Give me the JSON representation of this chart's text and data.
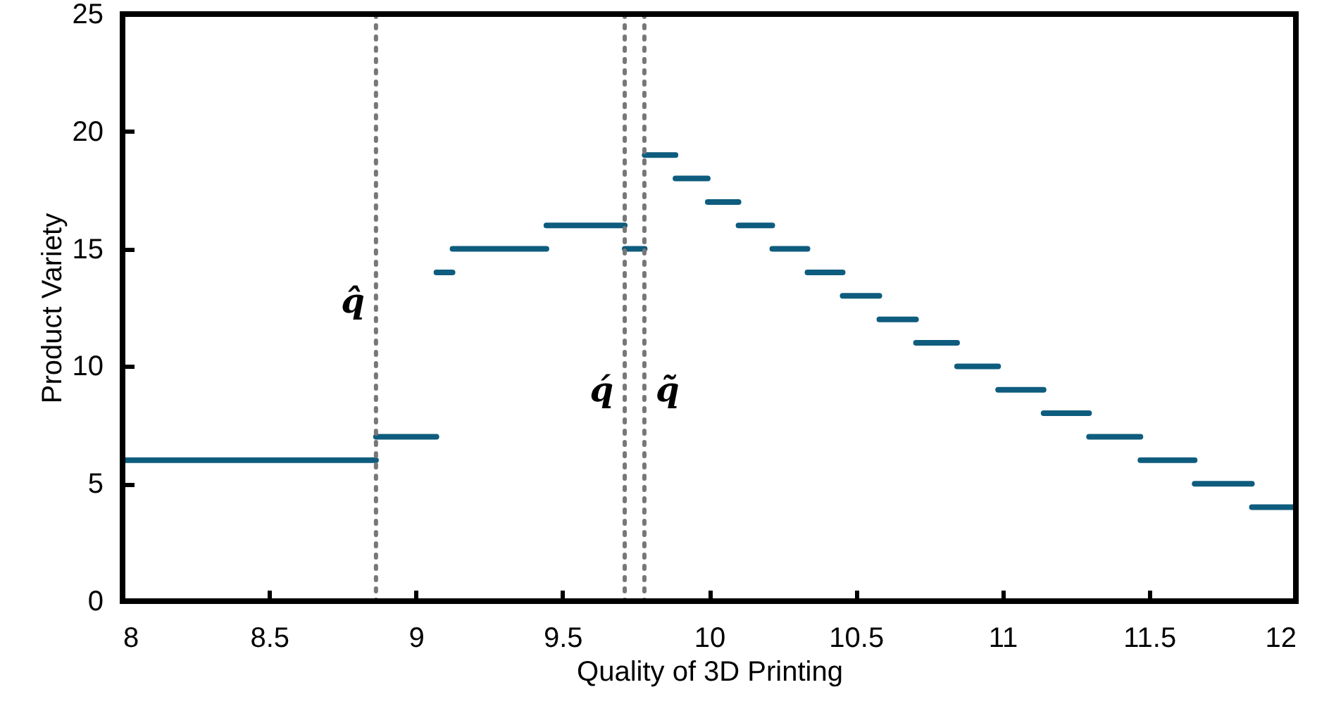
{
  "chart_data": {
    "type": "line",
    "xlabel": "Quality of 3D Printing",
    "ylabel": "Product Variety",
    "xlim": [
      8,
      12
    ],
    "ylim": [
      0,
      25
    ],
    "xticks": [
      8,
      8.5,
      9,
      9.5,
      10,
      10.5,
      11,
      11.5,
      12
    ],
    "yticks": [
      0,
      5,
      10,
      15,
      20,
      25
    ],
    "grid": false,
    "marker": "none",
    "line_style": "solid",
    "series": [
      {
        "color": "#0e5c7e",
        "x": [
          8,
          8.864
        ],
        "values": [
          6,
          6
        ]
      },
      {
        "color": "#0e5c7e",
        "x": [
          8.864,
          9.07
        ],
        "values": [
          7,
          7
        ]
      },
      {
        "color": "#0e5c7e",
        "x": [
          9.07,
          9.125
        ],
        "values": [
          14,
          14
        ]
      },
      {
        "color": "#0e5c7e",
        "x": [
          9.125,
          9.445
        ],
        "values": [
          15,
          15
        ]
      },
      {
        "color": "#0e5c7e",
        "x": [
          9.445,
          9.712
        ],
        "values": [
          16,
          16
        ]
      },
      {
        "color": "#0e5c7e",
        "x": [
          9.712,
          9.78
        ],
        "values": [
          15,
          15
        ]
      },
      {
        "color": "#0e5c7e",
        "x": [
          9.78,
          9.885
        ],
        "values": [
          19,
          19
        ]
      },
      {
        "color": "#0e5c7e",
        "x": [
          9.885,
          9.995
        ],
        "values": [
          18,
          18
        ]
      },
      {
        "color": "#0e5c7e",
        "x": [
          9.995,
          10.1
        ],
        "values": [
          17,
          17
        ]
      },
      {
        "color": "#0e5c7e",
        "x": [
          10.1,
          10.215
        ],
        "values": [
          16,
          16
        ]
      },
      {
        "color": "#0e5c7e",
        "x": [
          10.215,
          10.335
        ],
        "values": [
          15,
          15
        ]
      },
      {
        "color": "#0e5c7e",
        "x": [
          10.335,
          10.455
        ],
        "values": [
          14,
          14
        ]
      },
      {
        "color": "#0e5c7e",
        "x": [
          10.455,
          10.58
        ],
        "values": [
          13,
          13
        ]
      },
      {
        "color": "#0e5c7e",
        "x": [
          10.58,
          10.705
        ],
        "values": [
          12,
          12
        ]
      },
      {
        "color": "#0e5c7e",
        "x": [
          10.705,
          10.845
        ],
        "values": [
          11,
          11
        ]
      },
      {
        "color": "#0e5c7e",
        "x": [
          10.845,
          10.985
        ],
        "values": [
          10,
          10
        ]
      },
      {
        "color": "#0e5c7e",
        "x": [
          10.985,
          11.14
        ],
        "values": [
          9,
          9
        ]
      },
      {
        "color": "#0e5c7e",
        "x": [
          11.14,
          11.295
        ],
        "values": [
          8,
          8
        ]
      },
      {
        "color": "#0e5c7e",
        "x": [
          11.295,
          11.47
        ],
        "values": [
          7,
          7
        ]
      },
      {
        "color": "#0e5c7e",
        "x": [
          11.47,
          11.655
        ],
        "values": [
          6,
          6
        ]
      },
      {
        "color": "#0e5c7e",
        "x": [
          11.655,
          11.85
        ],
        "values": [
          5,
          5
        ]
      },
      {
        "color": "#0e5c7e",
        "x": [
          11.85,
          12
        ],
        "values": [
          4,
          4
        ]
      }
    ],
    "ref_lines": [
      {
        "axis": "x",
        "value": 8.864,
        "label": "q̂",
        "color": "#777777",
        "line_style": "dotted"
      },
      {
        "axis": "x",
        "value": 9.712,
        "label": "q́",
        "color": "#777777",
        "line_style": "dotted"
      },
      {
        "axis": "x",
        "value": 9.779,
        "label": "q̃",
        "color": "#777777",
        "line_style": "dotted"
      }
    ]
  }
}
